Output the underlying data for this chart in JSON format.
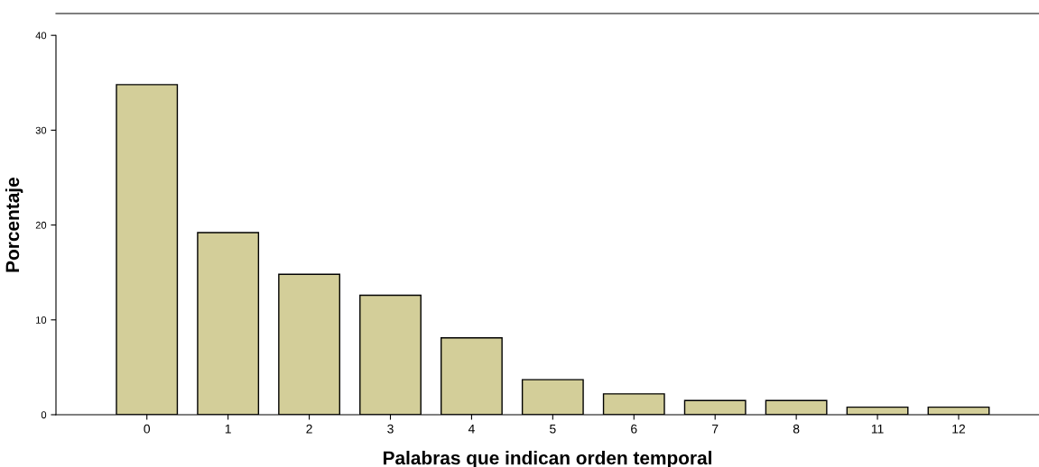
{
  "chart_data": {
    "type": "bar",
    "xlabel": "Palabras que indican orden temporal",
    "ylabel": "Porcentaje",
    "categories": [
      "0",
      "1",
      "2",
      "3",
      "4",
      "5",
      "6",
      "7",
      "8",
      "11",
      "12"
    ],
    "values": [
      34.8,
      19.2,
      14.8,
      12.6,
      8.1,
      3.7,
      2.2,
      1.5,
      1.5,
      0.8,
      0.8
    ],
    "color": "#d3ce99",
    "ylim": [
      0,
      40
    ],
    "yticks": [
      0,
      10,
      20,
      30,
      40
    ],
    "grid": false,
    "legend": false
  }
}
